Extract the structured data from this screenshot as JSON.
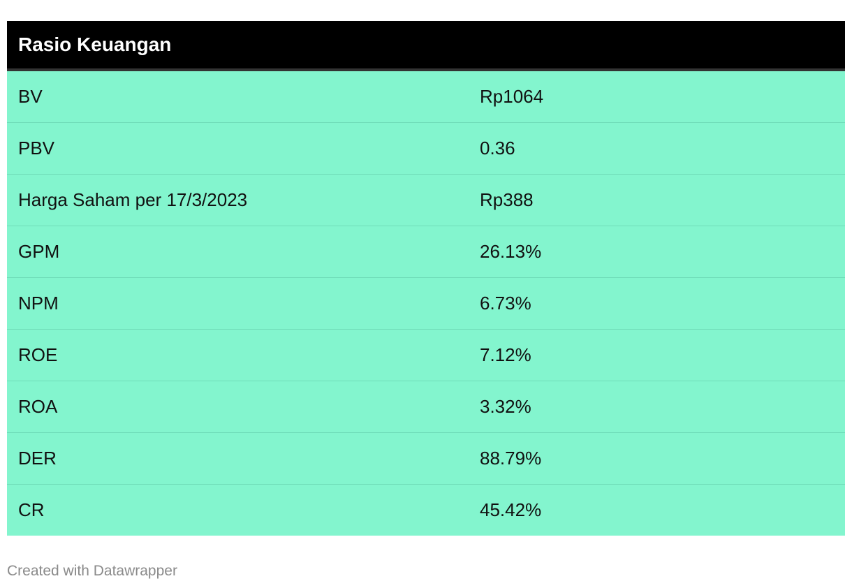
{
  "chart_data": {
    "type": "table",
    "title": "Rasio Keuangan",
    "header": [
      "Rasio Keuangan",
      ""
    ],
    "rows": [
      {
        "label": "BV",
        "value": "Rp1064"
      },
      {
        "label": "PBV",
        "value": "0.36"
      },
      {
        "label": "Harga Saham per 17/3/2023",
        "value": "Rp388"
      },
      {
        "label": "GPM",
        "value": "26.13%"
      },
      {
        "label": "NPM",
        "value": "6.73%"
      },
      {
        "label": "ROE",
        "value": "7.12%"
      },
      {
        "label": "ROA",
        "value": "3.32%"
      },
      {
        "label": "DER",
        "value": "88.79%"
      },
      {
        "label": "CR",
        "value": "45.42%"
      }
    ]
  },
  "footer": {
    "credit": "Created with Datawrapper"
  },
  "colors": {
    "header_bg": "#000000",
    "header_text": "#ffffff",
    "row_bg": "#83f5ce",
    "row_text": "#111111",
    "footer_text": "#8a8a8a"
  }
}
